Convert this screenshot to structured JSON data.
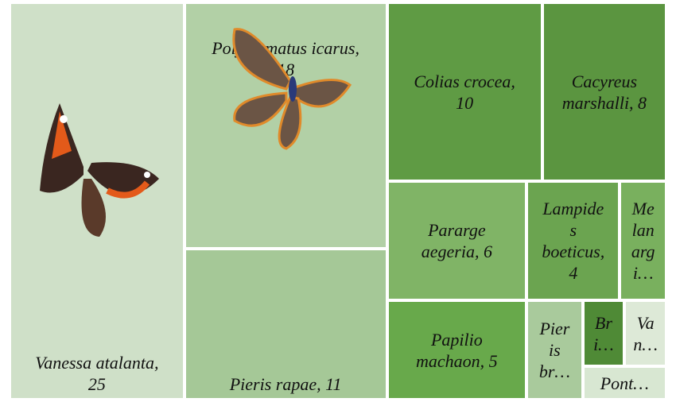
{
  "chart_data": {
    "type": "treemap",
    "labels": [
      "Vanessa atalanta,\n25",
      "Polyommatus icarus,\n18",
      "Pieris rapae, 11",
      "Colias crocea,\n10",
      "Cacyreus\nmarshalli, 8",
      "Pararge\naegeria, 6",
      "Lampide\ns\nboeticus,\n4",
      "Me\nlan\narg\ni…",
      "Papilio\nmachaon, 5",
      "Pier\nis\nbr…",
      "Br\ni…",
      "Va\nn…",
      "Pont…"
    ],
    "values": [
      25,
      18,
      11,
      10,
      8,
      6,
      4,
      2,
      5,
      2,
      1,
      1,
      1
    ],
    "colors": [
      "#cfe0c8",
      "#b2d0a6",
      "#a5c897",
      "#5f9b44",
      "#5b9540",
      "#80b466",
      "#6ba450",
      "#79b05e",
      "#68a94b",
      "#a9ca9c",
      "#4f8a36",
      "#dde9d7",
      "#d8e7d2"
    ]
  }
}
